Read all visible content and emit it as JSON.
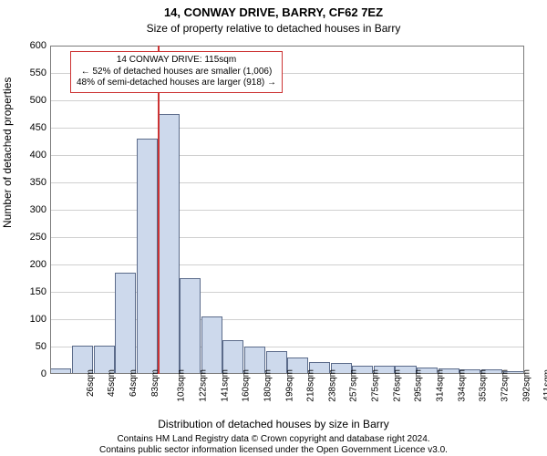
{
  "chart": {
    "type": "histogram",
    "title": "14, CONWAY DRIVE, BARRY, CF62 7EZ",
    "subtitle": "Size of property relative to detached houses in Barry",
    "ylabel": "Number of detached properties",
    "xlabel": "Distribution of detached houses by size in Barry",
    "background_color": "#ffffff",
    "bar_fill": "#cdd9ec",
    "bar_border": "#5b6b8a",
    "grid_color": "#d0d0d0",
    "axis_color": "#7a7a7a",
    "marker_line_color": "#cc3333",
    "title_fontsize": 13,
    "subtitle_fontsize": 12,
    "label_fontsize": 12,
    "tick_fontsize": 11,
    "ylim": [
      0,
      600
    ],
    "ytick_step": 50,
    "x_categories": [
      "26sqm",
      "45sqm",
      "64sqm",
      "83sqm",
      "103sqm",
      "122sqm",
      "141sqm",
      "160sqm",
      "180sqm",
      "199sqm",
      "218sqm",
      "238sqm",
      "257sqm",
      "275sqm",
      "276sqm",
      "295sqm",
      "314sqm",
      "334sqm",
      "353sqm",
      "372sqm",
      "392sqm",
      "411sqm"
    ],
    "values": [
      10,
      52,
      52,
      185,
      430,
      475,
      175,
      105,
      62,
      50,
      42,
      30,
      22,
      20,
      15,
      15,
      15,
      12,
      10,
      8,
      8,
      5
    ],
    "marker_bin_index": 5,
    "annotation": {
      "line1": "14 CONWAY DRIVE: 115sqm",
      "line2": "← 52% of detached houses are smaller (1,006)",
      "line3": "48% of semi-detached houses are larger (918) →"
    },
    "footer1": "Contains HM Land Registry data © Crown copyright and database right 2024.",
    "footer2": "Contains public sector information licensed under the Open Government Licence v3.0."
  }
}
